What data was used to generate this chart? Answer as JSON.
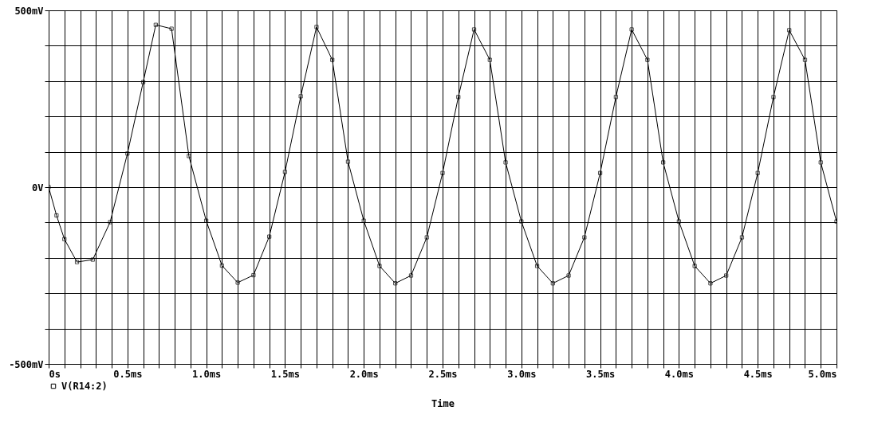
{
  "chart_data": {
    "type": "line",
    "xlabel": "Time",
    "legend": "bottom left",
    "grid": true,
    "marker": "square",
    "line_style": "solid",
    "xlim": [
      0,
      5
    ],
    "ylim": [
      -500,
      500
    ],
    "xticks": [
      {
        "value": 0,
        "label": "0s"
      },
      {
        "value": 0.1,
        "label": null
      },
      {
        "value": 0.2,
        "label": null
      },
      {
        "value": 0.3,
        "label": null
      },
      {
        "value": 0.4,
        "label": null
      },
      {
        "value": 0.5,
        "label": "0.5ms"
      },
      {
        "value": 0.6,
        "label": null
      },
      {
        "value": 0.7,
        "label": null
      },
      {
        "value": 0.8,
        "label": null
      },
      {
        "value": 0.9,
        "label": null
      },
      {
        "value": 1.0,
        "label": "1.0ms"
      },
      {
        "value": 1.1,
        "label": null
      },
      {
        "value": 1.2,
        "label": null
      },
      {
        "value": 1.3,
        "label": null
      },
      {
        "value": 1.4,
        "label": null
      },
      {
        "value": 1.5,
        "label": "1.5ms"
      },
      {
        "value": 1.6,
        "label": null
      },
      {
        "value": 1.7,
        "label": null
      },
      {
        "value": 1.8,
        "label": null
      },
      {
        "value": 1.9,
        "label": null
      },
      {
        "value": 2.0,
        "label": "2.0ms"
      },
      {
        "value": 2.1,
        "label": null
      },
      {
        "value": 2.2,
        "label": null
      },
      {
        "value": 2.3,
        "label": null
      },
      {
        "value": 2.4,
        "label": null
      },
      {
        "value": 2.5,
        "label": "2.5ms"
      },
      {
        "value": 2.6,
        "label": null
      },
      {
        "value": 2.7,
        "label": null
      },
      {
        "value": 2.8,
        "label": null
      },
      {
        "value": 2.9,
        "label": null
      },
      {
        "value": 3.0,
        "label": "3.0ms"
      },
      {
        "value": 3.1,
        "label": null
      },
      {
        "value": 3.2,
        "label": null
      },
      {
        "value": 3.3,
        "label": null
      },
      {
        "value": 3.4,
        "label": null
      },
      {
        "value": 3.5,
        "label": "3.5ms"
      },
      {
        "value": 3.6,
        "label": null
      },
      {
        "value": 3.7,
        "label": null
      },
      {
        "value": 3.8,
        "label": null
      },
      {
        "value": 3.9,
        "label": null
      },
      {
        "value": 4.0,
        "label": "4.0ms"
      },
      {
        "value": 4.1,
        "label": null
      },
      {
        "value": 4.2,
        "label": null
      },
      {
        "value": 4.3,
        "label": null
      },
      {
        "value": 4.4,
        "label": null
      },
      {
        "value": 4.5,
        "label": "4.5ms"
      },
      {
        "value": 4.6,
        "label": null
      },
      {
        "value": 4.7,
        "label": null
      },
      {
        "value": 4.8,
        "label": null
      },
      {
        "value": 4.9,
        "label": null
      },
      {
        "value": 5.0,
        "label": "5.0ms"
      }
    ],
    "yticks": [
      {
        "value": -500,
        "label": "-500mV"
      },
      {
        "value": -400,
        "label": null
      },
      {
        "value": -300,
        "label": null
      },
      {
        "value": -200,
        "label": null
      },
      {
        "value": -100,
        "label": null
      },
      {
        "value": 0,
        "label": "0V"
      },
      {
        "value": 100,
        "label": null
      },
      {
        "value": 200,
        "label": null
      },
      {
        "value": 300,
        "label": null
      },
      {
        "value": 400,
        "label": null
      },
      {
        "value": 500,
        "label": "500mV"
      }
    ],
    "x": [
      0,
      0.05,
      0.1,
      0.18,
      0.28,
      0.39,
      0.5,
      0.6,
      0.68,
      0.78,
      0.89,
      1.0,
      1.1,
      1.2,
      1.3,
      1.4,
      1.5,
      1.6,
      1.7,
      1.8,
      1.9,
      2.0,
      2.1,
      2.2,
      2.3,
      2.4,
      2.5,
      2.6,
      2.7,
      2.8,
      2.9,
      3.0,
      3.1,
      3.2,
      3.3,
      3.4,
      3.5,
      3.6,
      3.7,
      3.8,
      3.9,
      4.0,
      4.1,
      4.2,
      4.3,
      4.4,
      4.5,
      4.6,
      4.7,
      4.8,
      4.9,
      5.0
    ],
    "series": [
      {
        "name": "V(R14:2)",
        "color": "#000000",
        "values": [
          0,
          -80,
          -147,
          -212,
          -205,
          -99,
          95,
          297,
          459,
          448,
          88,
          -95,
          -222,
          -270,
          -249,
          -140,
          43,
          257,
          453,
          360,
          72,
          -95,
          -223,
          -272,
          -250,
          -142,
          40,
          255,
          446,
          360,
          70,
          -97,
          -223,
          -272,
          -250,
          -142,
          40,
          255,
          446,
          360,
          70,
          -97,
          -223,
          -272,
          -250,
          -142,
          40,
          255,
          444,
          360,
          70,
          -97
        ]
      }
    ]
  }
}
